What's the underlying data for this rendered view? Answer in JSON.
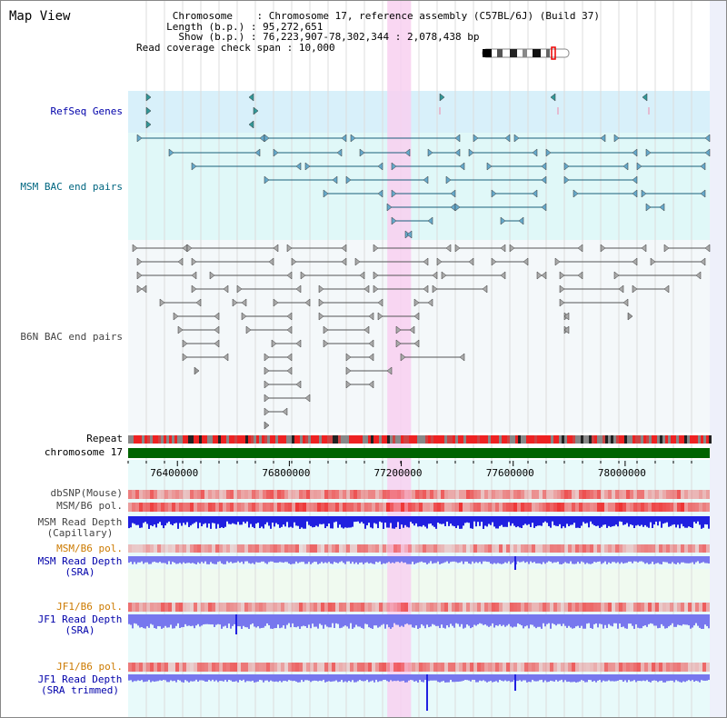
{
  "view_title": "Map View",
  "info": {
    "chromosome_label": "Chromosome",
    "chromosome_value": "Chromosome 17, reference assembly (C57BL/6J) (Build 37)",
    "length_label": "Length (b.p.)",
    "length_value": "95,272,651",
    "show_label": "Show (b.p.)",
    "show_value": "76,223,907-78,302,344 : 2,078,438 bp",
    "coverage_label": "Read coverage check span",
    "coverage_value": "10,000"
  },
  "tracks": {
    "refseq": {
      "label": "RefSeq Genes",
      "color": "#0000aa"
    },
    "msm_bac": {
      "label": "MSM BAC end pairs",
      "color": "#006680"
    },
    "b6n_bac": {
      "label": "B6N BAC end pairs",
      "color": "#444444"
    },
    "repeat": {
      "label": "Repeat",
      "color": "#000000"
    },
    "chromosome": {
      "label": "chromosome 17",
      "color": "#000000"
    },
    "dbsnp": {
      "label": "dbSNP(Mouse)",
      "color": "#444444"
    },
    "msm_b6_pol_1": {
      "label": "MSM/B6 pol.",
      "color": "#444444"
    },
    "msm_depth_cap": {
      "label_line1": "MSM Read Depth",
      "label_line2": "(Capillary)",
      "color": "#444444"
    },
    "msm_b6_pol_2": {
      "label": "MSM/B6 pol.",
      "color": "#cc7a00"
    },
    "msm_depth_sra": {
      "label_line1": "MSM Read Depth",
      "label_line2": "(SRA)",
      "color": "#0000aa"
    },
    "jf1_b6_pol_1": {
      "label": "JF1/B6 pol.",
      "color": "#cc7a00"
    },
    "jf1_depth_sra": {
      "label_line1": "JF1 Read Depth",
      "label_line2": "(SRA)",
      "color": "#0000aa"
    },
    "jf1_b6_pol_2": {
      "label": "JF1/B6 pol.",
      "color": "#cc7a00"
    },
    "jf1_depth_trim": {
      "label_line1": "JF1 Read Depth",
      "label_line2": "(SRA trimmed)",
      "color": "#0000aa"
    }
  },
  "ruler": {
    "ticks": [
      {
        "value": 76400000,
        "label": "76400000"
      },
      {
        "value": 76800000,
        "label": "76800000"
      },
      {
        "value": 77200000,
        "label": "77200000"
      },
      {
        "value": 77600000,
        "label": "77600000"
      },
      {
        "value": 78000000,
        "label": "78000000"
      }
    ]
  },
  "view_range": {
    "start": 76223907,
    "end": 78302344
  },
  "highlight": {
    "start": 77150000,
    "end": 77235000,
    "color": "#f8d0f0"
  },
  "colors": {
    "refseq_bg": "#d8f0fa",
    "msm_bg": "#e0f8f8",
    "b6n_bg": "#f4f8fa",
    "chromosome_bar": "#006400",
    "depth_cap": "#2020e0",
    "depth_sra": "#7777ee",
    "pol_red": "#ee3333"
  }
}
